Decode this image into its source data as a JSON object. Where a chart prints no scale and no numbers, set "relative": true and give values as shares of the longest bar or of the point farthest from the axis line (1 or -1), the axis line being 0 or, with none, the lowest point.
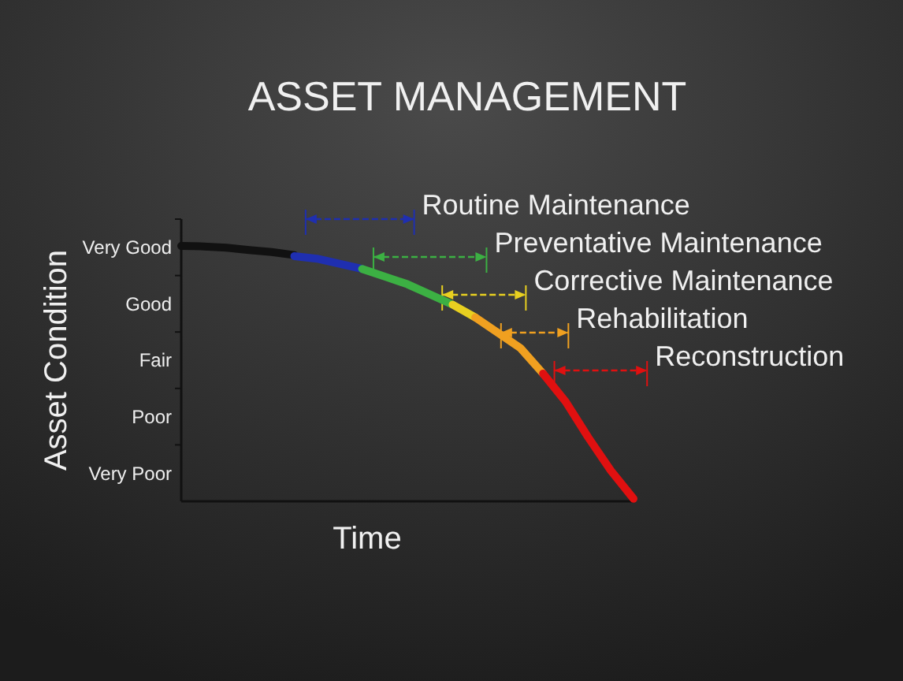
{
  "chart_data": {
    "type": "line",
    "title": "ASSET MANAGEMENT",
    "xlabel": "Time",
    "ylabel": "Asset Condition",
    "categories": [
      null,
      null,
      null,
      null,
      null,
      null,
      null,
      null,
      null,
      null,
      null,
      null,
      null,
      null,
      null,
      null,
      null,
      null,
      null,
      null,
      null
    ],
    "relative": true,
    "marker": "none",
    "line_style": "solid",
    "series": [
      {
        "color": "#111111",
        "values": [
          1,
          0.998,
          0.993,
          0.984,
          0.976,
          0.964,
          null,
          null,
          null,
          null,
          null,
          null,
          null,
          null,
          null,
          null,
          null,
          null,
          null,
          null,
          null
        ]
      },
      {
        "color": "#1f2fb0",
        "values": [
          null,
          null,
          null,
          null,
          null,
          0.96,
          0.95,
          0.93,
          0.91,
          null,
          null,
          null,
          null,
          null,
          null,
          null,
          null,
          null,
          null,
          null,
          null
        ]
      },
      {
        "color": "#3cb043",
        "values": [
          null,
          null,
          null,
          null,
          null,
          null,
          null,
          null,
          0.91,
          0.88,
          0.85,
          0.81,
          0.77,
          null,
          null,
          null,
          null,
          null,
          null,
          null,
          null
        ]
      },
      {
        "color": "#e8d020",
        "values": [
          null,
          null,
          null,
          null,
          null,
          null,
          null,
          null,
          null,
          null,
          null,
          null,
          0.77,
          0.72,
          null,
          null,
          null,
          null,
          null,
          null,
          null
        ]
      },
      {
        "color": "#f0a020",
        "values": [
          null,
          null,
          null,
          null,
          null,
          null,
          null,
          null,
          null,
          null,
          null,
          null,
          null,
          0.72,
          0.66,
          0.6,
          0.5,
          null,
          null,
          null,
          null
        ]
      },
      {
        "color": "#e01010",
        "values": [
          null,
          null,
          null,
          null,
          null,
          null,
          null,
          null,
          null,
          null,
          null,
          null,
          null,
          null,
          null,
          null,
          0.5,
          0.39,
          0.25,
          0.12,
          0.01
        ]
      }
    ],
    "annotations": [
      "Routine Maintenance",
      "Preventative Maintenance",
      "Corrective Maintenance",
      "Rehabilitation",
      "Reconstruction",
      "Very Good",
      "Good",
      "Fair",
      "Poor",
      "Very Poor"
    ]
  }
}
